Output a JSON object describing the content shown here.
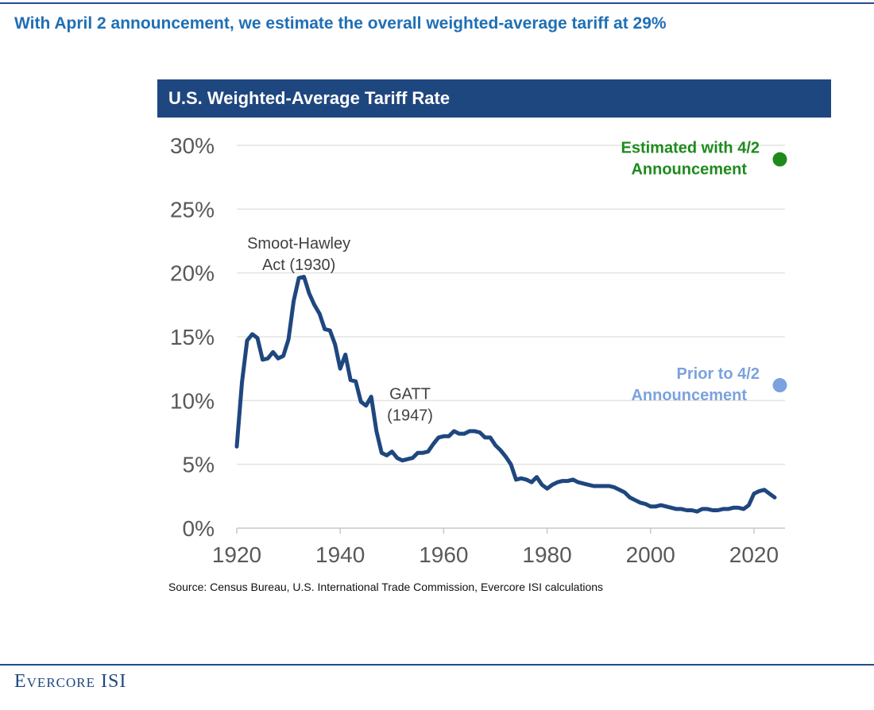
{
  "header": {
    "headline": "With April 2 announcement, we estimate the overall weighted-average tariff at 29%"
  },
  "footer": {
    "source": "Source: Census Bureau, U.S. International Trade Commission, Evercore ISI calculations",
    "logo": "Evercore ISI"
  },
  "colors": {
    "headline": "#1f6fb5",
    "banner": "#1f477f",
    "line": "#1f477f",
    "estimated_point": "#1e8a1e",
    "prior_point": "#7ba2df",
    "grid": "#e3e3e3",
    "tick_text": "#595959"
  },
  "chart_data": {
    "type": "line",
    "title": "U.S. Weighted-Average Tariff Rate",
    "xlabel": "",
    "ylabel": "",
    "xlim": [
      1920,
      2026
    ],
    "ylim": [
      0,
      30
    ],
    "x_ticks": [
      1920,
      1940,
      1960,
      1980,
      2000,
      2020
    ],
    "y_ticks": [
      0,
      5,
      10,
      15,
      20,
      25,
      30
    ],
    "y_tick_labels": [
      "0%",
      "5%",
      "10%",
      "15%",
      "20%",
      "25%",
      "30%"
    ],
    "grid": "horizontal",
    "series": [
      {
        "x": [
          1920,
          1921,
          1922,
          1923,
          1924,
          1925,
          1926,
          1927,
          1928,
          1929,
          1930,
          1931,
          1932,
          1933,
          1934,
          1935,
          1936,
          1937,
          1938,
          1939,
          1940,
          1941,
          1942,
          1943,
          1944,
          1945,
          1946,
          1947,
          1948,
          1949,
          1950,
          1951,
          1952,
          1953,
          1954,
          1955,
          1956,
          1957,
          1958,
          1959,
          1960,
          1961,
          1962,
          1963,
          1964,
          1965,
          1966,
          1967,
          1968,
          1969,
          1970,
          1971,
          1972,
          1973,
          1974,
          1975,
          1976,
          1977,
          1978,
          1979,
          1980,
          1981,
          1982,
          1983,
          1984,
          1985,
          1986,
          1987,
          1988,
          1989,
          1990,
          1991,
          1992,
          1993,
          1994,
          1995,
          1996,
          1997,
          1998,
          1999,
          2000,
          2001,
          2002,
          2003,
          2004,
          2005,
          2006,
          2007,
          2008,
          2009,
          2010,
          2011,
          2012,
          2013,
          2014,
          2015,
          2016,
          2017,
          2018,
          2019,
          2020,
          2021,
          2022,
          2023,
          2024
        ],
        "values": [
          6.4,
          11.4,
          14.7,
          15.2,
          14.9,
          13.2,
          13.3,
          13.8,
          13.3,
          13.5,
          14.8,
          17.8,
          19.6,
          19.7,
          18.4,
          17.5,
          16.8,
          15.6,
          15.5,
          14.4,
          12.5,
          13.6,
          11.6,
          11.5,
          9.9,
          9.6,
          10.3,
          7.6,
          5.9,
          5.7,
          6.0,
          5.5,
          5.3,
          5.4,
          5.5,
          5.9,
          5.9,
          6.0,
          6.6,
          7.1,
          7.2,
          7.2,
          7.6,
          7.4,
          7.4,
          7.6,
          7.6,
          7.5,
          7.1,
          7.1,
          6.5,
          6.1,
          5.6,
          5.0,
          3.8,
          3.9,
          3.8,
          3.6,
          4.0,
          3.4,
          3.1,
          3.4,
          3.6,
          3.7,
          3.7,
          3.8,
          3.6,
          3.5,
          3.4,
          3.3,
          3.3,
          3.3,
          3.3,
          3.2,
          3.0,
          2.8,
          2.4,
          2.2,
          2.0,
          1.9,
          1.7,
          1.7,
          1.8,
          1.7,
          1.6,
          1.5,
          1.5,
          1.4,
          1.4,
          1.3,
          1.5,
          1.5,
          1.4,
          1.4,
          1.5,
          1.5,
          1.6,
          1.6,
          1.5,
          1.8,
          2.7,
          2.9,
          3.0,
          2.7,
          2.4
        ]
      }
    ],
    "points": [
      {
        "label_lines": [
          "Estimated with 4/2",
          "Announcement"
        ],
        "x": 2025,
        "value": 28.9
      },
      {
        "label_lines": [
          "Prior to 4/2",
          "Announcement"
        ],
        "x": 2025,
        "value": 11.2
      }
    ],
    "annotations": [
      {
        "lines": [
          "Smoot-Hawley",
          "Act (1930)"
        ],
        "x": 1932,
        "y": 21.9
      },
      {
        "lines": [
          "GATT",
          "(1947)"
        ],
        "x": 1953.5,
        "y": 10.1
      }
    ]
  }
}
